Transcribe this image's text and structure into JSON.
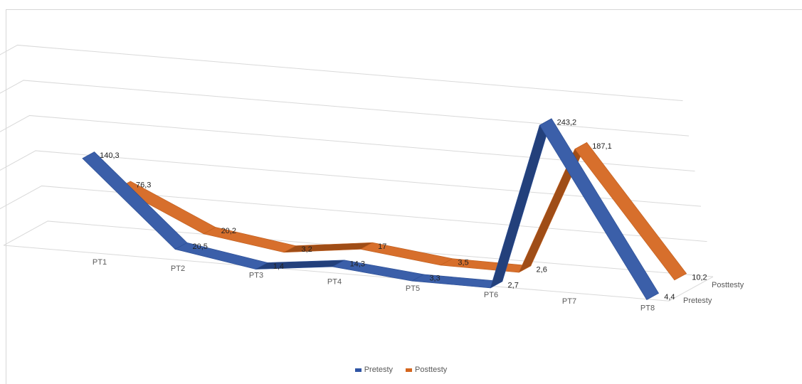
{
  "chart_data": {
    "type": "line",
    "variant": "3d-line",
    "categories": [
      "PT1",
      "PT2",
      "PT3",
      "PT4",
      "PT5",
      "PT6",
      "PT7",
      "PT8"
    ],
    "y_ticks": [
      "0",
      "50",
      "100",
      "150",
      "200",
      "250"
    ],
    "ylim": [
      0,
      250
    ],
    "depth_labels": [
      "Pretesty",
      "Posttesty"
    ],
    "series": [
      {
        "name": "Pretesty",
        "color": "#2f55a4",
        "values": [
          140.3,
          20.5,
          1.4,
          14.3,
          3.3,
          2.7,
          243.2,
          4.4
        ],
        "labels": [
          "140,3",
          "20,5",
          "1,4",
          "14,3",
          "3,3",
          "2,7",
          "243,2",
          "4,4"
        ]
      },
      {
        "name": "Posttesty",
        "color": "#d4661e",
        "values": [
          76.3,
          20.2,
          3.2,
          17,
          3.5,
          2.6,
          187.1,
          10.2
        ],
        "labels": [
          "76,3",
          "20,2",
          "3,2",
          "17",
          "3,5",
          "2,6",
          "187,1",
          "10,2"
        ]
      }
    ],
    "legend": {
      "position": "bottom",
      "items": [
        {
          "label": "Pretesty",
          "color": "#2f55a4"
        },
        {
          "label": "Posttesty",
          "color": "#d4661e"
        }
      ]
    },
    "grid": true
  }
}
